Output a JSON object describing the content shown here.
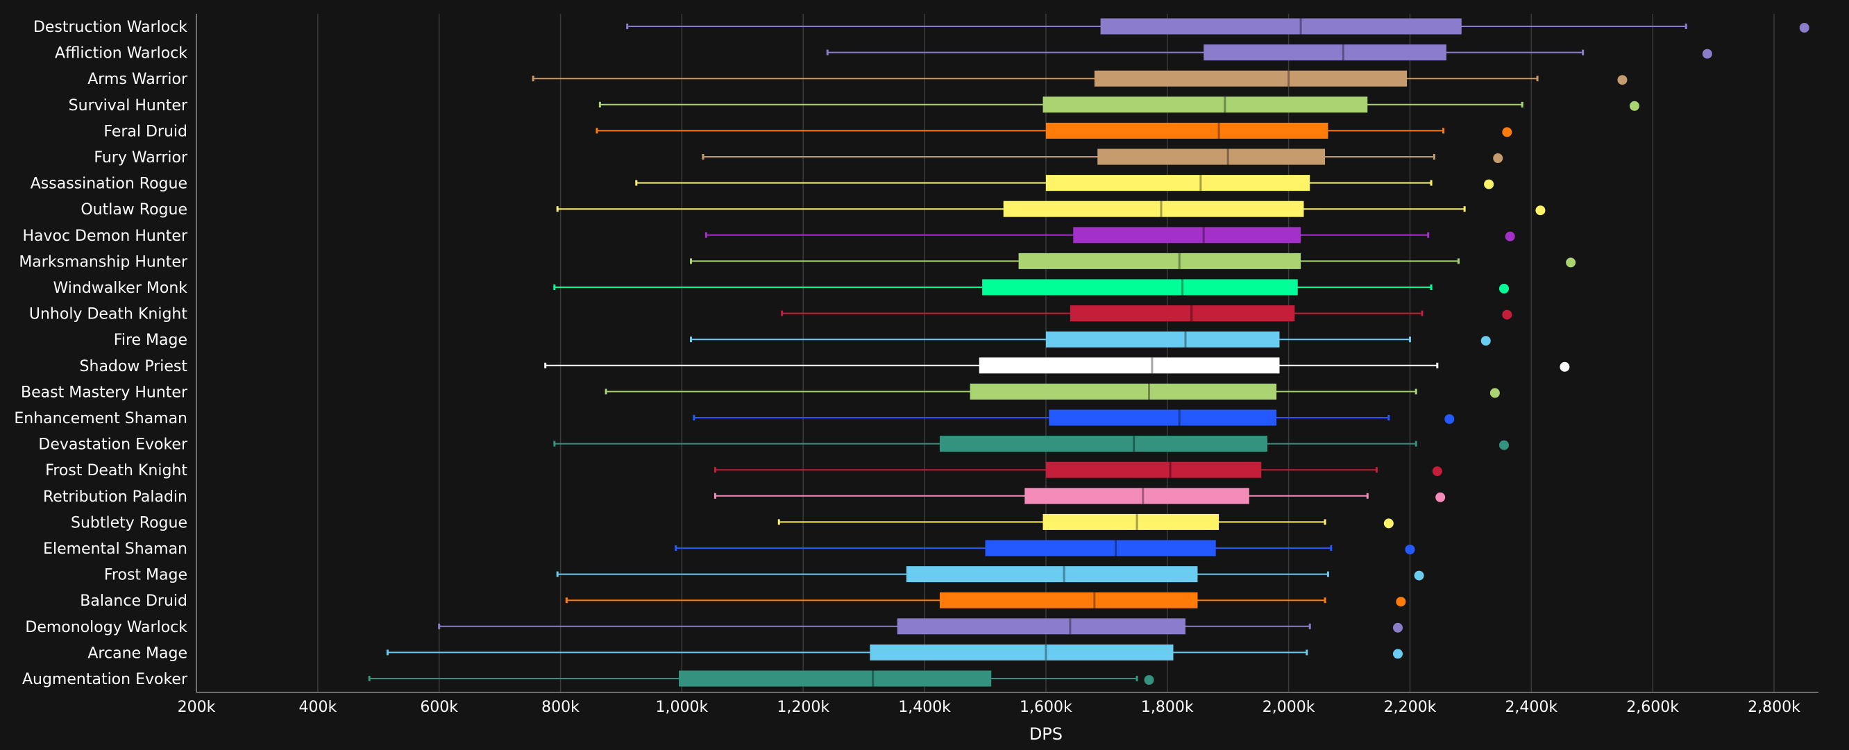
{
  "chart_data": {
    "type": "boxplot",
    "orientation": "horizontal",
    "xlabel": "DPS",
    "xlim": [
      200000,
      2900000
    ],
    "xticks": [
      {
        "value": 200000,
        "label": "200k"
      },
      {
        "value": 400000,
        "label": "400k"
      },
      {
        "value": 600000,
        "label": "600k"
      },
      {
        "value": 800000,
        "label": "800k"
      },
      {
        "value": 1000000,
        "label": "1,000k"
      },
      {
        "value": 1200000,
        "label": "1,200k"
      },
      {
        "value": 1400000,
        "label": "1,400k"
      },
      {
        "value": 1600000,
        "label": "1,600k"
      },
      {
        "value": 1800000,
        "label": "1,800k"
      },
      {
        "value": 2000000,
        "label": "2,000k"
      },
      {
        "value": 2200000,
        "label": "2,200k"
      },
      {
        "value": 2400000,
        "label": "2,400k"
      },
      {
        "value": 2600000,
        "label": "2,600k"
      },
      {
        "value": 2800000,
        "label": "2,800k"
      }
    ],
    "grid": true,
    "series": [
      {
        "name": "Destruction Warlock",
        "color": "#8c7ccc",
        "min": 910000,
        "q1": 1690000,
        "median": 2020000,
        "q3": 2285000,
        "max": 2655000,
        "outlier": 2850000
      },
      {
        "name": "Affliction Warlock",
        "color": "#8c7ccc",
        "min": 1240000,
        "q1": 1860000,
        "median": 2090000,
        "q3": 2260000,
        "max": 2485000,
        "outlier": 2690000
      },
      {
        "name": "Arms Warrior",
        "color": "#c69b6d",
        "min": 755000,
        "q1": 1680000,
        "median": 2000000,
        "q3": 2195000,
        "max": 2410000,
        "outlier": 2550000
      },
      {
        "name": "Survival Hunter",
        "color": "#aad372",
        "min": 865000,
        "q1": 1595000,
        "median": 1895000,
        "q3": 2130000,
        "max": 2385000,
        "outlier": 2570000
      },
      {
        "name": "Feral Druid",
        "color": "#ff7c0a",
        "min": 860000,
        "q1": 1600000,
        "median": 1885000,
        "q3": 2065000,
        "max": 2255000,
        "outlier": 2360000
      },
      {
        "name": "Fury Warrior",
        "color": "#c69b6d",
        "min": 1035000,
        "q1": 1685000,
        "median": 1900000,
        "q3": 2060000,
        "max": 2240000,
        "outlier": 2345000
      },
      {
        "name": "Assassination Rogue",
        "color": "#fff468",
        "min": 925000,
        "q1": 1600000,
        "median": 1855000,
        "q3": 2035000,
        "max": 2235000,
        "outlier": 2330000
      },
      {
        "name": "Outlaw Rogue",
        "color": "#fff468",
        "min": 795000,
        "q1": 1530000,
        "median": 1790000,
        "q3": 2025000,
        "max": 2290000,
        "outlier": 2415000
      },
      {
        "name": "Havoc Demon Hunter",
        "color": "#a330c9",
        "min": 1040000,
        "q1": 1645000,
        "median": 1860000,
        "q3": 2020000,
        "max": 2230000,
        "outlier": 2365000
      },
      {
        "name": "Marksmanship Hunter",
        "color": "#aad372",
        "min": 1015000,
        "q1": 1555000,
        "median": 1820000,
        "q3": 2020000,
        "max": 2280000,
        "outlier": 2465000
      },
      {
        "name": "Windwalker Monk",
        "color": "#00ff98",
        "min": 790000,
        "q1": 1495000,
        "median": 1825000,
        "q3": 2015000,
        "max": 2235000,
        "outlier": 2355000
      },
      {
        "name": "Unholy Death Knight",
        "color": "#c41e3a",
        "min": 1165000,
        "q1": 1640000,
        "median": 1840000,
        "q3": 2010000,
        "max": 2220000,
        "outlier": 2360000
      },
      {
        "name": "Fire Mage",
        "color": "#69ccf0",
        "min": 1015000,
        "q1": 1600000,
        "median": 1830000,
        "q3": 1985000,
        "max": 2200000,
        "outlier": 2325000
      },
      {
        "name": "Shadow Priest",
        "color": "#ffffff",
        "min": 775000,
        "q1": 1490000,
        "median": 1775000,
        "q3": 1985000,
        "max": 2245000,
        "outlier": 2455000
      },
      {
        "name": "Beast Mastery Hunter",
        "color": "#aad372",
        "min": 875000,
        "q1": 1475000,
        "median": 1770000,
        "q3": 1980000,
        "max": 2210000,
        "outlier": 2340000
      },
      {
        "name": "Enhancement Shaman",
        "color": "#2459ff",
        "min": 1020000,
        "q1": 1605000,
        "median": 1820000,
        "q3": 1980000,
        "max": 2165000,
        "outlier": 2265000
      },
      {
        "name": "Devastation Evoker",
        "color": "#33937f",
        "min": 790000,
        "q1": 1425000,
        "median": 1745000,
        "q3": 1965000,
        "max": 2210000,
        "outlier": 2355000
      },
      {
        "name": "Frost Death Knight",
        "color": "#c41e3a",
        "min": 1055000,
        "q1": 1600000,
        "median": 1805000,
        "q3": 1955000,
        "max": 2145000,
        "outlier": 2245000
      },
      {
        "name": "Retribution Paladin",
        "color": "#f48cba",
        "min": 1055000,
        "q1": 1565000,
        "median": 1760000,
        "q3": 1935000,
        "max": 2130000,
        "outlier": 2250000
      },
      {
        "name": "Subtlety Rogue",
        "color": "#fff468",
        "min": 1160000,
        "q1": 1595000,
        "median": 1750000,
        "q3": 1885000,
        "max": 2060000,
        "outlier": 2165000
      },
      {
        "name": "Elemental Shaman",
        "color": "#2459ff",
        "min": 990000,
        "q1": 1500000,
        "median": 1715000,
        "q3": 1880000,
        "max": 2070000,
        "outlier": 2200000
      },
      {
        "name": "Frost Mage",
        "color": "#69ccf0",
        "min": 795000,
        "q1": 1370000,
        "median": 1630000,
        "q3": 1850000,
        "max": 2065000,
        "outlier": 2215000
      },
      {
        "name": "Balance Druid",
        "color": "#ff7c0a",
        "min": 810000,
        "q1": 1425000,
        "median": 1680000,
        "q3": 1850000,
        "max": 2060000,
        "outlier": 2185000
      },
      {
        "name": "Demonology Warlock",
        "color": "#8c7ccc",
        "min": 600000,
        "q1": 1355000,
        "median": 1640000,
        "q3": 1830000,
        "max": 2035000,
        "outlier": 2180000
      },
      {
        "name": "Arcane Mage",
        "color": "#69ccf0",
        "min": 515000,
        "q1": 1310000,
        "median": 1600000,
        "q3": 1810000,
        "max": 2030000,
        "outlier": 2180000
      },
      {
        "name": "Augmentation Evoker",
        "color": "#33937f",
        "min": 485000,
        "q1": 995000,
        "median": 1315000,
        "q3": 1510000,
        "max": 1750000,
        "outlier": 1770000
      }
    ]
  }
}
